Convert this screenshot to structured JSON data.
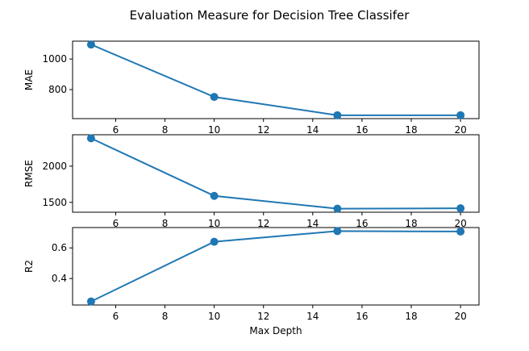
{
  "figure": {
    "title": "Evaluation Measure for Decision Tree Classifer"
  },
  "chart_data": [
    {
      "type": "line",
      "title": "",
      "xlabel": "",
      "ylabel": "MAE",
      "x": [
        5,
        10,
        15,
        20
      ],
      "series": [
        {
          "values": [
            1095,
            752,
            632,
            632
          ]
        }
      ],
      "xlim": [
        4.25,
        20.75
      ],
      "ylim": [
        610,
        1117
      ],
      "xticks": [
        6,
        8,
        10,
        12,
        14,
        16,
        18,
        20
      ],
      "yticks": [
        800,
        1000
      ],
      "grid": false,
      "color": "#1f77b4"
    },
    {
      "type": "line",
      "title": "",
      "xlabel": "",
      "ylabel": "RMSE",
      "x": [
        5,
        10,
        15,
        20
      ],
      "series": [
        {
          "values": [
            2385,
            1590,
            1413,
            1418
          ]
        }
      ],
      "xlim": [
        4.25,
        20.75
      ],
      "ylim": [
        1364,
        2434
      ],
      "xticks": [
        6,
        8,
        10,
        12,
        14,
        16,
        18,
        20
      ],
      "yticks": [
        1500,
        2000
      ],
      "grid": false,
      "color": "#1f77b4"
    },
    {
      "type": "line",
      "title": "",
      "xlabel": "Max Depth",
      "ylabel": "R2",
      "x": [
        5,
        10,
        15,
        20
      ],
      "series": [
        {
          "values": [
            0.25,
            0.64,
            0.71,
            0.707
          ]
        }
      ],
      "xlim": [
        4.25,
        20.75
      ],
      "ylim": [
        0.227,
        0.733
      ],
      "xticks": [
        6,
        8,
        10,
        12,
        14,
        16,
        18,
        20
      ],
      "yticks": [
        0.4,
        0.6
      ],
      "grid": false,
      "color": "#1f77b4"
    }
  ]
}
